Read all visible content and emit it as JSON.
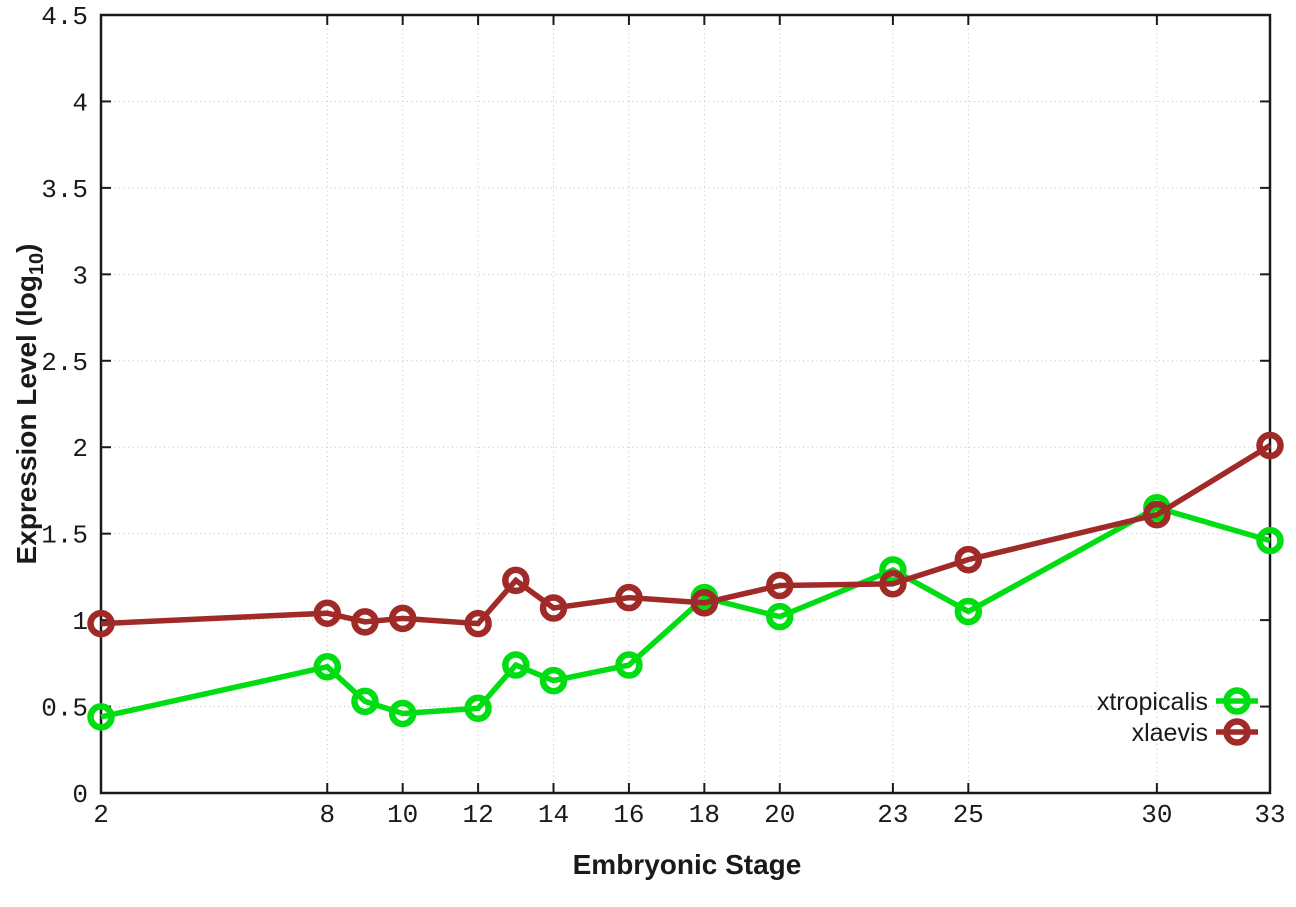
{
  "chart_data": {
    "type": "line",
    "title": "",
    "xlabel": "Embryonic Stage",
    "ylabel": "Expression Level (log10)",
    "ylabel_main": "Expression Level (log",
    "ylabel_sub": "10",
    "ylabel_close": ")",
    "xlim": [
      2,
      33
    ],
    "ylim": [
      0,
      4.5
    ],
    "xticks": [
      2,
      8,
      10,
      12,
      14,
      16,
      18,
      20,
      23,
      25,
      30,
      33
    ],
    "xtick_labels": [
      "2",
      "8",
      "10",
      "12",
      "14",
      "16",
      "18",
      "20",
      "23",
      "25",
      "30",
      "33"
    ],
    "yticks": [
      0,
      0.5,
      1,
      1.5,
      2,
      2.5,
      3,
      3.5,
      4,
      4.5
    ],
    "ytick_labels": [
      "0",
      "0.5",
      "1",
      "1.5",
      "2",
      "2.5",
      "3",
      "3.5",
      "4",
      "4.5"
    ],
    "grid": true,
    "legend_position": "bottom-right",
    "x": [
      2,
      8,
      9,
      10,
      12,
      13,
      14,
      16,
      18,
      20,
      23,
      25,
      30,
      33
    ],
    "series": [
      {
        "name": "xtropicalis",
        "color": "#00dd12",
        "values": [
          0.44,
          0.73,
          0.53,
          0.46,
          0.49,
          0.74,
          0.65,
          0.74,
          1.13,
          1.02,
          1.29,
          1.05,
          1.65,
          1.46
        ]
      },
      {
        "name": "xlaevis",
        "color": "#a02a28",
        "values": [
          0.98,
          1.04,
          0.99,
          1.01,
          0.98,
          1.23,
          1.07,
          1.13,
          1.1,
          1.2,
          1.21,
          1.35,
          1.61,
          2.01
        ]
      }
    ],
    "colors": {
      "grid": "#bfbfbf",
      "axis": "#1a1a1a",
      "text": "#1a1a1a",
      "background": "#ffffff"
    }
  }
}
